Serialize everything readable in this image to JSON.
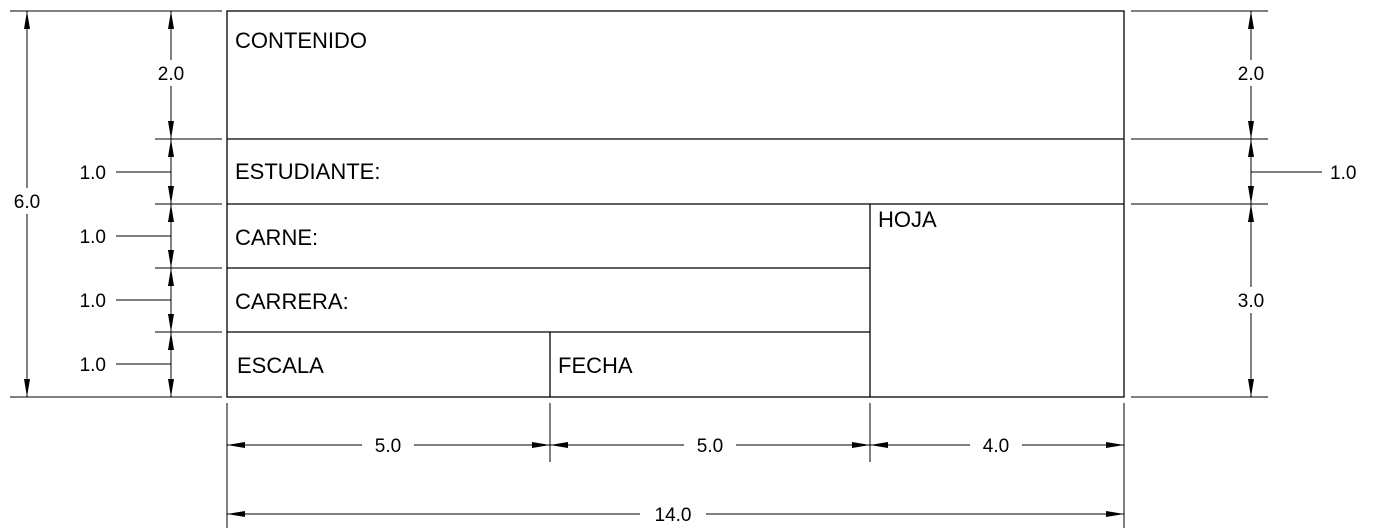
{
  "title_block": {
    "contenido": "CONTENIDO",
    "estudiante": "ESTUDIANTE:",
    "carne": "CARNE:",
    "carrera": "CARRERA:",
    "escala": "ESCALA",
    "fecha": "FECHA",
    "hoja": "HOJA"
  },
  "dimensions": {
    "left": {
      "total": "6.0",
      "contenido": "2.0",
      "estudiante": "1.0",
      "carne": "1.0",
      "carrera": "1.0",
      "escala": "1.0"
    },
    "right": {
      "contenido": "2.0",
      "estudiante": "1.0",
      "hoja": "3.0"
    },
    "bottom": {
      "escala": "5.0",
      "fecha": "5.0",
      "hoja": "4.0",
      "total": "14.0"
    }
  }
}
